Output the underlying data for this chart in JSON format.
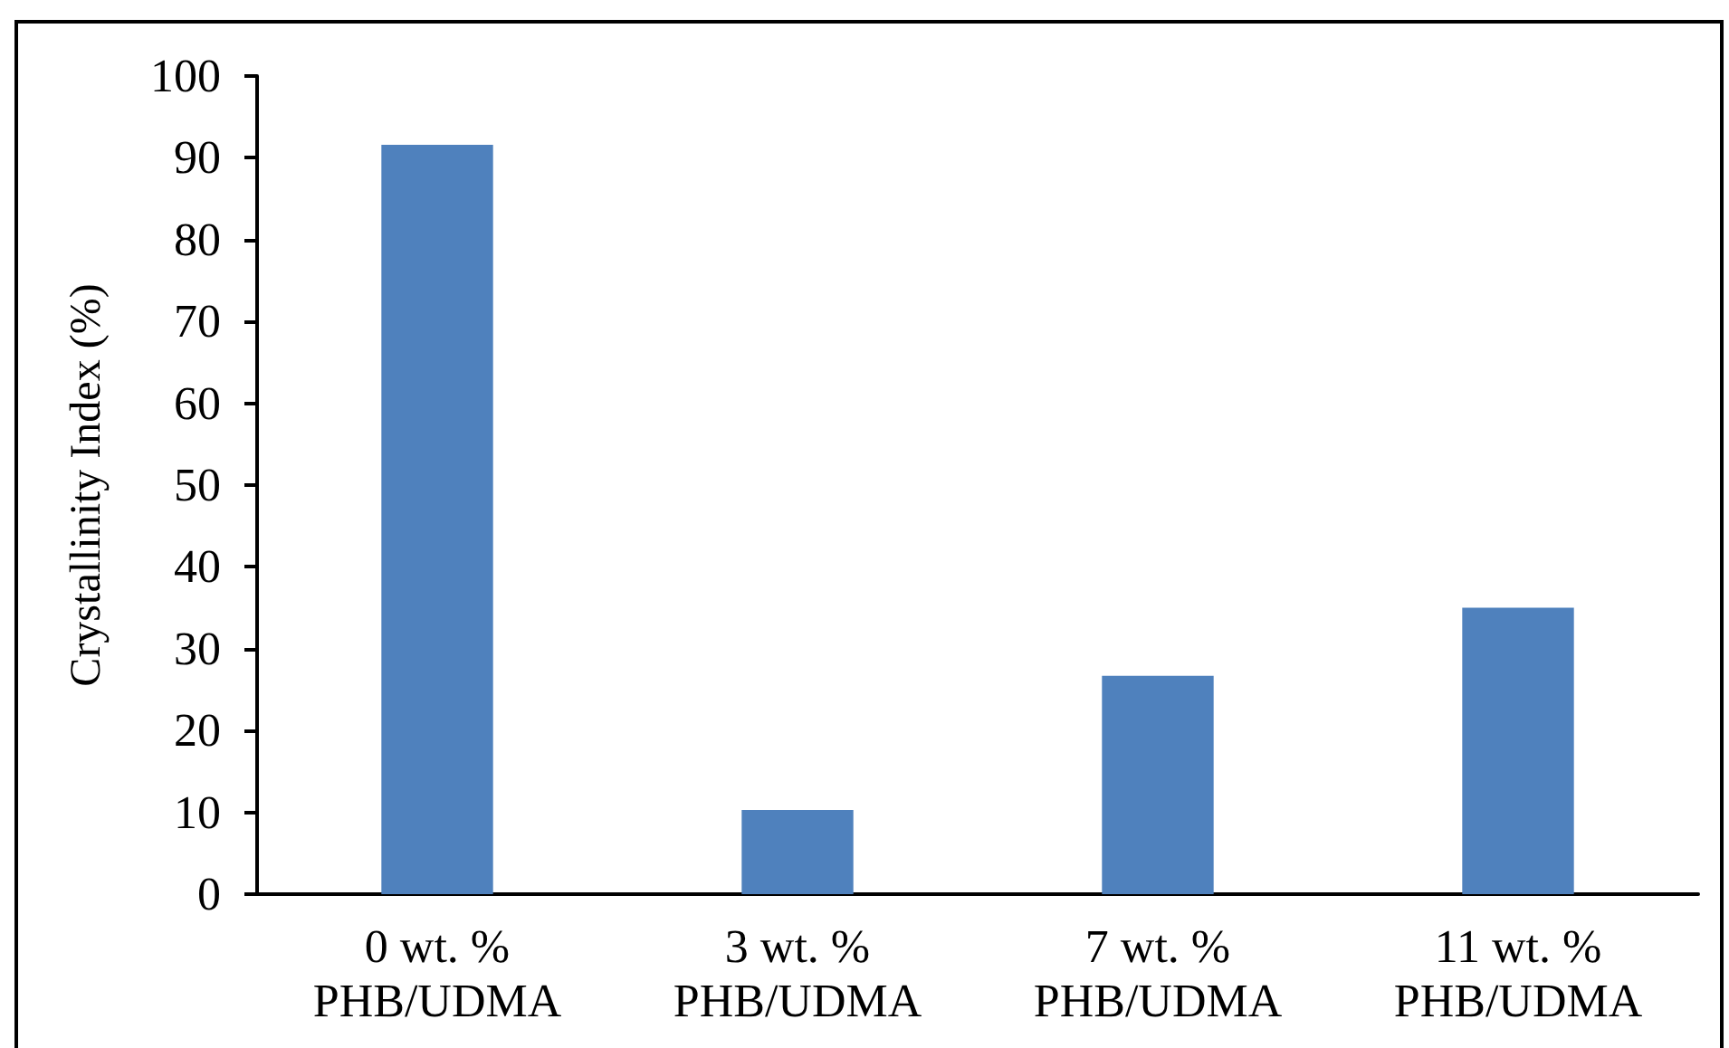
{
  "chart_data": {
    "type": "bar",
    "ylabel": "Crystallinity Index (%)",
    "categories": [
      "0 wt. %\nPHB/UDMA",
      "3 wt. %\nPHB/UDMA",
      "7 wt. %\nPHB/UDMA",
      "11 wt. %\nPHB/UDMA"
    ],
    "values": [
      91.6,
      10.3,
      26.7,
      35.0
    ],
    "color": "#4f81bd",
    "ylim": [
      0,
      100
    ],
    "yticks": [
      0,
      10,
      20,
      30,
      40,
      50,
      60,
      70,
      80,
      90,
      100
    ]
  }
}
